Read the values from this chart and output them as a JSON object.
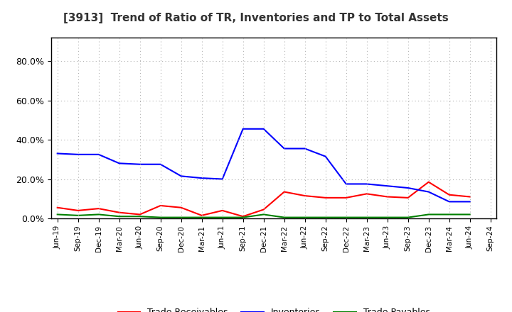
{
  "title": "[3913]  Trend of Ratio of TR, Inventories and TP to Total Assets",
  "x_labels": [
    "Jun-19",
    "Sep-19",
    "Dec-19",
    "Mar-20",
    "Jun-20",
    "Sep-20",
    "Dec-20",
    "Mar-21",
    "Jun-21",
    "Sep-21",
    "Dec-21",
    "Mar-22",
    "Jun-22",
    "Sep-22",
    "Dec-22",
    "Mar-23",
    "Jun-23",
    "Sep-23",
    "Dec-23",
    "Mar-24",
    "Jun-24",
    "Sep-24"
  ],
  "trade_receivables": [
    0.055,
    0.04,
    0.05,
    0.03,
    0.02,
    0.065,
    0.055,
    0.015,
    0.04,
    0.01,
    0.045,
    0.135,
    0.115,
    0.105,
    0.105,
    0.125,
    0.11,
    0.105,
    0.185,
    0.12,
    0.11,
    null
  ],
  "inventories": [
    0.33,
    0.325,
    0.325,
    0.28,
    0.275,
    0.275,
    0.215,
    0.205,
    0.2,
    0.455,
    0.455,
    0.355,
    0.355,
    0.315,
    0.175,
    0.175,
    0.165,
    0.155,
    0.135,
    0.085,
    0.085,
    null
  ],
  "trade_payables": [
    0.02,
    0.015,
    0.02,
    0.01,
    0.01,
    0.005,
    0.005,
    0.005,
    0.005,
    0.005,
    0.02,
    0.005,
    0.005,
    0.005,
    0.005,
    0.005,
    0.005,
    0.005,
    0.02,
    0.02,
    0.02,
    null
  ],
  "color_tr": "#ff0000",
  "color_inv": "#0000ff",
  "color_tp": "#008000",
  "ylim": [
    0.0,
    0.92
  ],
  "yticks": [
    0.0,
    0.2,
    0.4,
    0.6,
    0.8
  ],
  "ytick_labels": [
    "0.0%",
    "20.0%",
    "40.0%",
    "60.0%",
    "80.0%"
  ],
  "background_color": "#ffffff",
  "grid_color": "#b0b0b0"
}
